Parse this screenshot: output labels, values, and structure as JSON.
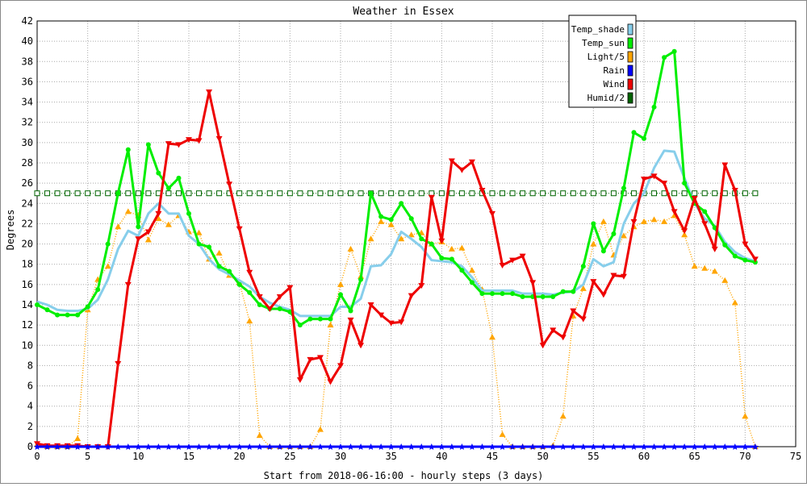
{
  "chart_data": {
    "type": "line",
    "title": "Weather in Essex",
    "xlabel": "Start from 2018-06-16:00 - hourly steps (3 days)",
    "ylabel": "Degrees",
    "xlim": [
      0,
      75
    ],
    "ylim": [
      0,
      42
    ],
    "xticks": [
      0,
      5,
      10,
      15,
      20,
      25,
      30,
      35,
      40,
      45,
      50,
      55,
      60,
      65,
      70,
      75
    ],
    "yticks": [
      0,
      2,
      4,
      6,
      8,
      10,
      12,
      14,
      16,
      18,
      20,
      22,
      24,
      26,
      28,
      30,
      32,
      34,
      36,
      38,
      40,
      42
    ],
    "grid": true,
    "legend_position": "top-right",
    "x": [
      0,
      1,
      2,
      3,
      4,
      5,
      6,
      7,
      8,
      9,
      10,
      11,
      12,
      13,
      14,
      15,
      16,
      17,
      18,
      19,
      20,
      21,
      22,
      23,
      24,
      25,
      26,
      27,
      28,
      29,
      30,
      31,
      32,
      33,
      34,
      35,
      36,
      37,
      38,
      39,
      40,
      41,
      42,
      43,
      44,
      45,
      46,
      47,
      48,
      49,
      50,
      51,
      52,
      53,
      54,
      55,
      56,
      57,
      58,
      59,
      60,
      61,
      62,
      63,
      64,
      65,
      66,
      67,
      68,
      69,
      70,
      71
    ],
    "series": [
      {
        "name": "Temp_shade",
        "color": "#87ceeb",
        "style": "thick",
        "marker": "none",
        "values": [
          14.3,
          14,
          13.5,
          13.4,
          13.4,
          13.6,
          14.5,
          16.5,
          19.5,
          21.3,
          20.8,
          23,
          24,
          23,
          23,
          20.8,
          20,
          18.5,
          17.5,
          17,
          16.4,
          15.8,
          14.8,
          14.2,
          13.8,
          13.5,
          12.9,
          12.9,
          12.9,
          12.9,
          13.8,
          13.8,
          14.6,
          17.8,
          17.9,
          19,
          21.2,
          20.5,
          19.7,
          18.4,
          18.3,
          18.2,
          17.8,
          16.7,
          15.4,
          15.4,
          15.4,
          15.4,
          15.1,
          15.1,
          15.1,
          15,
          15.2,
          15.3,
          16,
          18.5,
          17.8,
          18.2,
          22,
          24,
          25,
          27.5,
          29.2,
          29.1,
          26.5,
          24,
          22.5,
          21.8,
          20.2,
          19.2,
          18.6,
          18.3
        ]
      },
      {
        "name": "Temp_sun",
        "color": "#00ee00",
        "style": "thick",
        "marker": "diamond",
        "values": [
          14,
          13.5,
          13,
          13,
          13,
          13.8,
          15.5,
          20,
          25,
          29.3,
          21.7,
          29.8,
          27,
          25.5,
          26.5,
          23,
          20,
          19.7,
          17.8,
          17.3,
          16,
          15.2,
          14,
          13.6,
          13.6,
          13.3,
          12,
          12.6,
          12.6,
          12.6,
          15,
          13.4,
          16.5,
          25,
          22.7,
          22.4,
          24,
          22.5,
          20.5,
          20,
          18.6,
          18.5,
          17.4,
          16.2,
          15.1,
          15.1,
          15.1,
          15.1,
          14.8,
          14.8,
          14.8,
          14.8,
          15.3,
          15.3,
          17.8,
          22,
          19.3,
          21,
          25.5,
          31,
          30.4,
          33.5,
          38.4,
          39,
          26,
          24,
          23.2,
          21.6,
          19.9,
          18.8,
          18.4,
          18.2
        ]
      },
      {
        "name": "Light/5",
        "color": "#ffa500",
        "style": "dotted",
        "marker": "triangle-up",
        "values": [
          0.2,
          0,
          0,
          0,
          0.8,
          13.5,
          16.5,
          17.8,
          21.7,
          23.2,
          22.8,
          20.4,
          22.5,
          21.9,
          22.8,
          21.2,
          21.1,
          18.5,
          19.1,
          16.9,
          16.2,
          12.4,
          1.1,
          0,
          0,
          0,
          0,
          0,
          1.7,
          12,
          16,
          19.5,
          16.8,
          20.5,
          22.2,
          21.9,
          20.5,
          20.9,
          21.1,
          20,
          20.2,
          19.5,
          19.6,
          17.4,
          15.5,
          10.8,
          1.2,
          0,
          0,
          0,
          0,
          0.1,
          3,
          12.9,
          15.6,
          20,
          22.2,
          18.9,
          20.8,
          21.7,
          22.2,
          22.4,
          22.2,
          22.8,
          20.9,
          17.8,
          17.6,
          17.3,
          16.4,
          14.2,
          3,
          0
        ]
      },
      {
        "name": "Rain",
        "color": "#0000ff",
        "style": "thick",
        "marker": "star",
        "values": [
          0,
          0,
          0,
          0,
          0,
          0,
          0,
          0,
          0,
          0,
          0,
          0,
          0,
          0,
          0,
          0,
          0,
          0,
          0,
          0,
          0,
          0,
          0,
          0,
          0,
          0,
          0,
          0,
          0,
          0,
          0,
          0,
          0,
          0,
          0,
          0,
          0,
          0,
          0,
          0,
          0,
          0,
          0,
          0,
          0,
          0,
          0,
          0,
          0,
          0,
          0,
          0,
          0,
          0,
          0,
          0,
          0,
          0,
          0,
          0,
          0,
          0,
          0,
          0,
          0,
          0,
          0,
          0,
          0,
          0,
          0,
          0
        ]
      },
      {
        "name": "Wind",
        "color": "#ee0000",
        "style": "thick",
        "marker": "triangle-down",
        "values": [
          0.3,
          0.1,
          0.1,
          0.1,
          0.1,
          0,
          0,
          0,
          8.2,
          16,
          20.5,
          21.2,
          23,
          29.9,
          29.8,
          30.3,
          30.2,
          35,
          30.4,
          25.9,
          21.5,
          17.2,
          14.8,
          13.6,
          14.8,
          15.7,
          6.6,
          8.6,
          8.8,
          6.4,
          8,
          12.5,
          10,
          14,
          13,
          12.2,
          12.3,
          14.9,
          15.9,
          24.6,
          20.3,
          28.2,
          27.3,
          28.1,
          25.3,
          23,
          17.9,
          18.4,
          18.8,
          16.2,
          10,
          11.5,
          10.8,
          13.4,
          12.6,
          16.3,
          15,
          16.9,
          16.8,
          22.2,
          26.4,
          26.7,
          26,
          23.2,
          21.3,
          24.5,
          22,
          19.5,
          27.8,
          25.3,
          20,
          18.5
        ]
      },
      {
        "name": "Humid/2",
        "color": "#006400",
        "style": "dotted",
        "marker": "square",
        "values": [
          25,
          25,
          25,
          25,
          25,
          25,
          25,
          25,
          25,
          25,
          25,
          25,
          25,
          25,
          25,
          25,
          25,
          25,
          25,
          25,
          25,
          25,
          25,
          25,
          25,
          25,
          25,
          25,
          25,
          25,
          25,
          25,
          25,
          25,
          25,
          25,
          25,
          25,
          25,
          25,
          25,
          25,
          25,
          25,
          25,
          25,
          25,
          25,
          25,
          25,
          25,
          25,
          25,
          25,
          25,
          25,
          25,
          25,
          25,
          25,
          25,
          25,
          25,
          25,
          25,
          25,
          25,
          25,
          25,
          25,
          25,
          25
        ]
      }
    ]
  }
}
